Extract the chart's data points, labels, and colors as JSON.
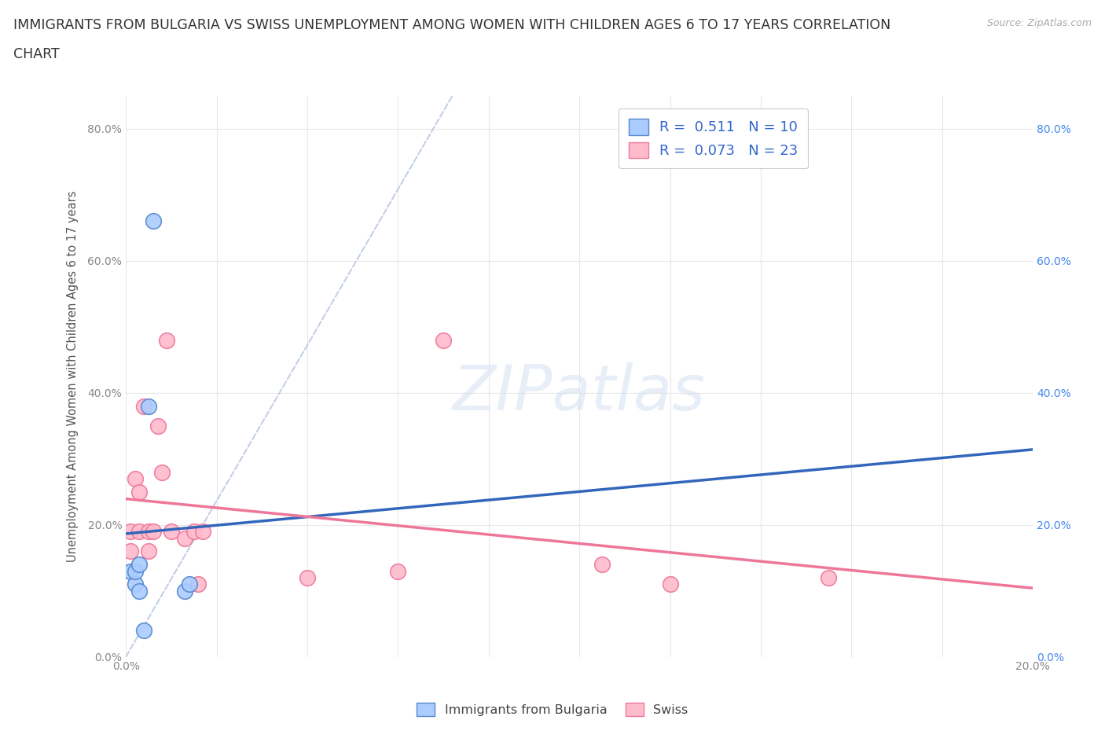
{
  "title_line1": "IMMIGRANTS FROM BULGARIA VS SWISS UNEMPLOYMENT AMONG WOMEN WITH CHILDREN AGES 6 TO 17 YEARS CORRELATION",
  "title_line2": "CHART",
  "source": "Source: ZipAtlas.com",
  "ylabel": "Unemployment Among Women with Children Ages 6 to 17 years",
  "xlim": [
    0.0,
    0.2
  ],
  "ylim": [
    0.0,
    0.85
  ],
  "bg_color": "#ffffff",
  "grid_color": "#e8e8e8",
  "series1_name": "Immigrants from Bulgaria",
  "series1_color": "#aaccff",
  "series1_edge_color": "#5588cc",
  "series1_line_color": "#3366bb",
  "series1_R": 0.511,
  "series1_N": 10,
  "series2_name": "Swiss",
  "series2_color": "#ffbbcc",
  "series2_edge_color": "#ee7799",
  "series2_line_color": "#ee7799",
  "series2_R": 0.073,
  "series2_N": 23,
  "series1_x": [
    0.001,
    0.002,
    0.002,
    0.003,
    0.003,
    0.004,
    0.005,
    0.006,
    0.013,
    0.014
  ],
  "series1_y": [
    0.13,
    0.11,
    0.13,
    0.1,
    0.14,
    0.04,
    0.38,
    0.66,
    0.1,
    0.11
  ],
  "series2_x": [
    0.001,
    0.001,
    0.002,
    0.003,
    0.003,
    0.004,
    0.005,
    0.005,
    0.006,
    0.007,
    0.008,
    0.009,
    0.01,
    0.013,
    0.015,
    0.016,
    0.017,
    0.04,
    0.06,
    0.07,
    0.105,
    0.12,
    0.155
  ],
  "series2_y": [
    0.16,
    0.19,
    0.27,
    0.19,
    0.25,
    0.38,
    0.16,
    0.19,
    0.19,
    0.35,
    0.28,
    0.48,
    0.19,
    0.18,
    0.19,
    0.11,
    0.19,
    0.12,
    0.13,
    0.48,
    0.14,
    0.11,
    0.12
  ],
  "watermark_text": "ZIPatlas",
  "watermark_color": "#d0dff0",
  "watermark_alpha": 0.5,
  "legend_label_color": "#3366cc",
  "right_tick_color": "#4488ee"
}
